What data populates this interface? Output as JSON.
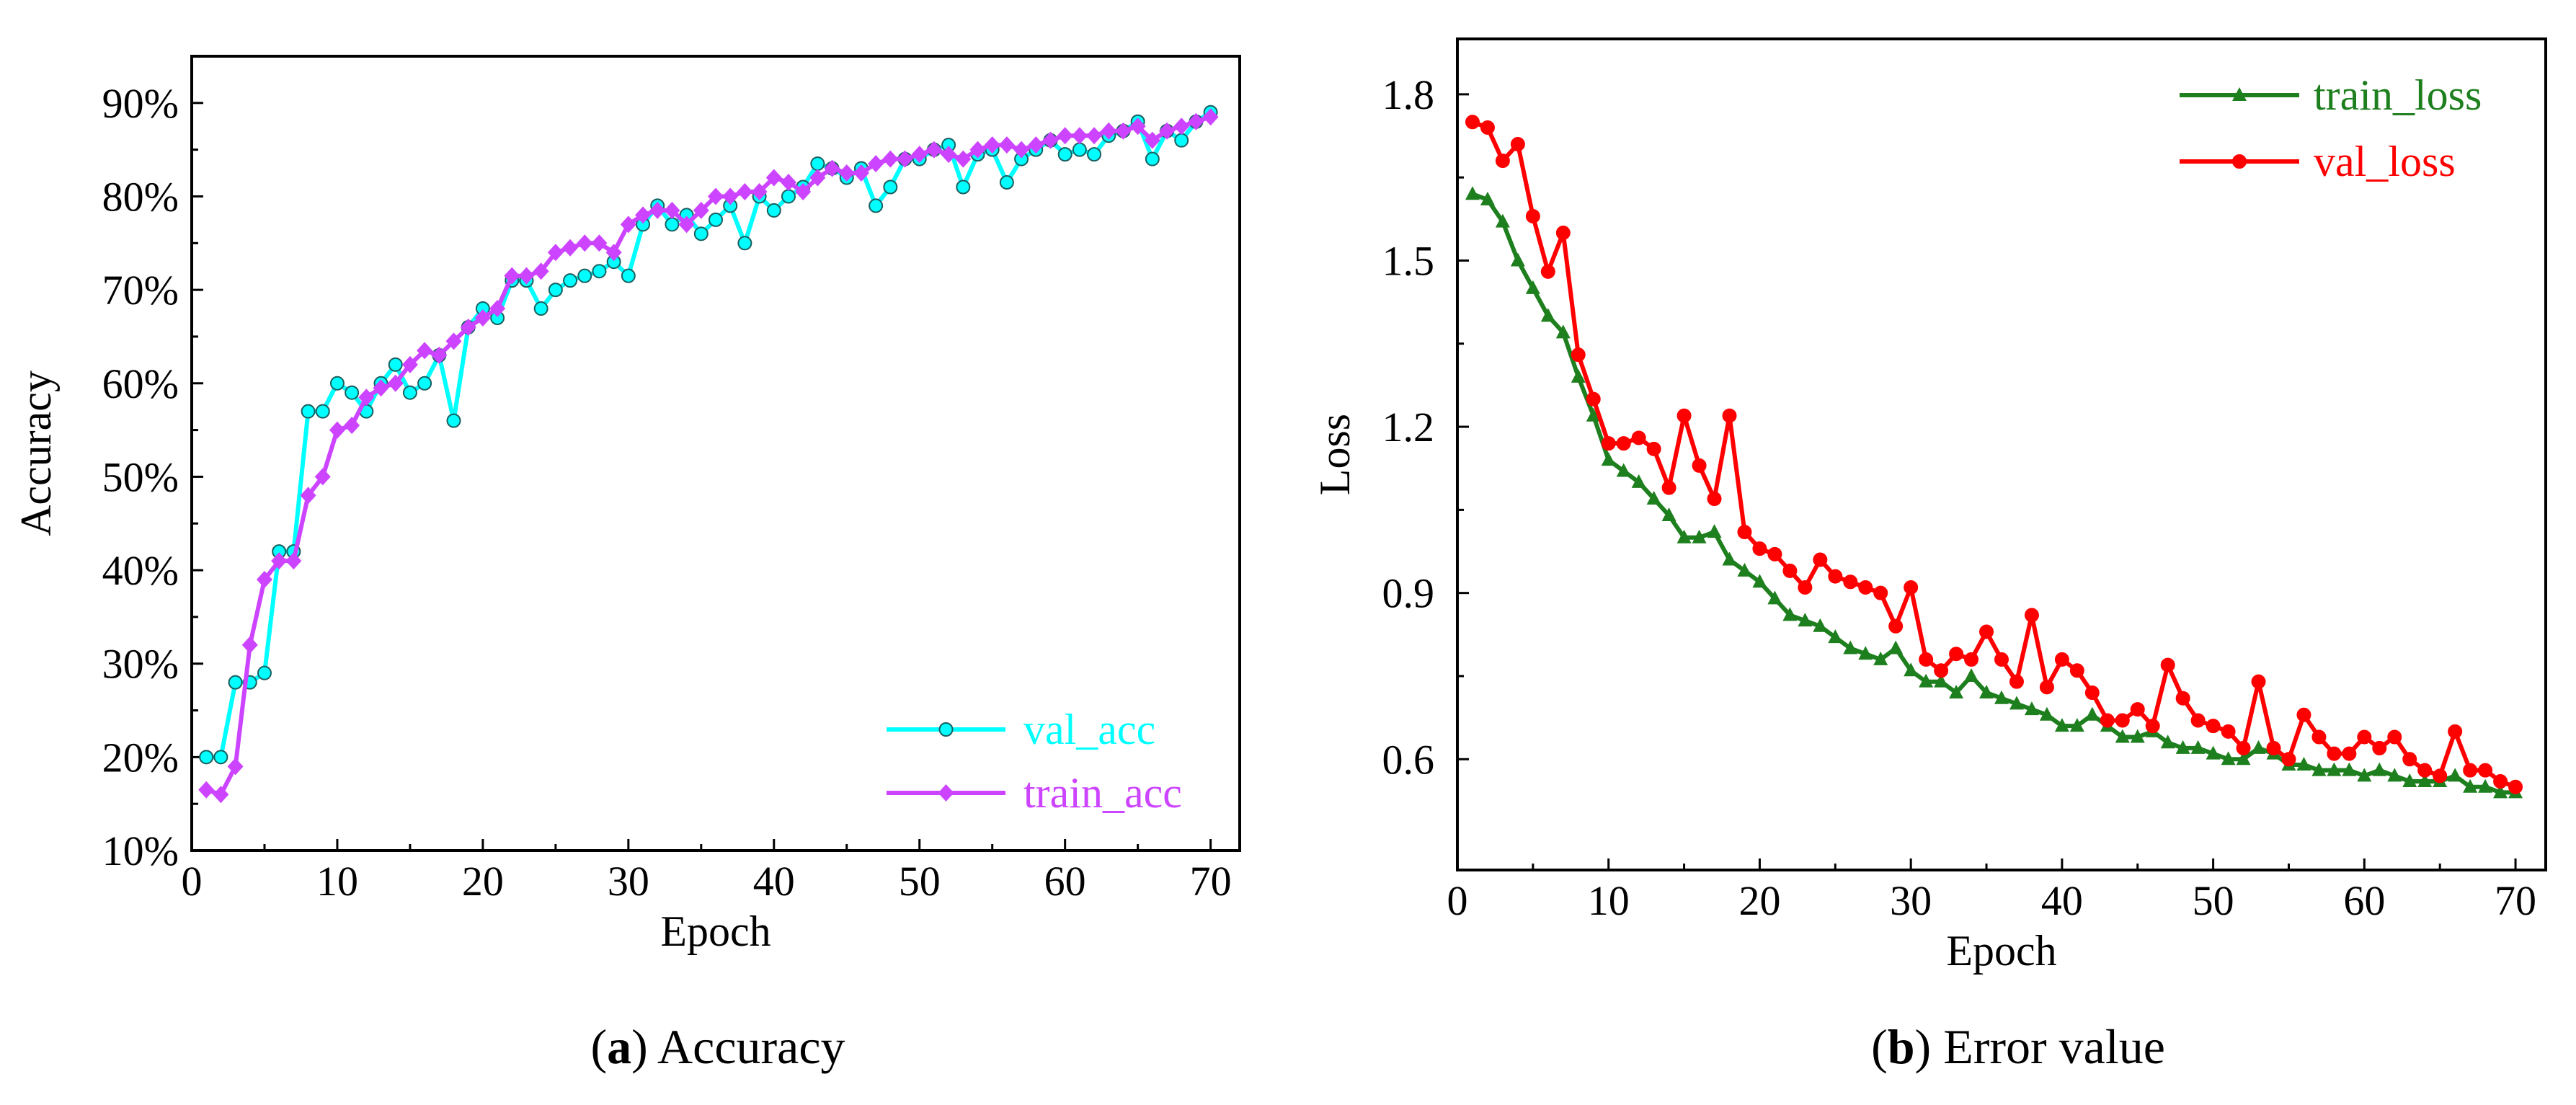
{
  "chart_data": [
    {
      "type": "line",
      "xlabel": "Epoch",
      "ylabel": "Accuracy",
      "xlim": [
        0,
        72
      ],
      "ylim": [
        10,
        95
      ],
      "xticks": [
        0,
        10,
        20,
        30,
        40,
        50,
        60,
        70
      ],
      "yticks": [
        10,
        20,
        30,
        40,
        50,
        60,
        70,
        80,
        90
      ],
      "ytick_labels": [
        "10%",
        "20%",
        "30%",
        "40%",
        "50%",
        "60%",
        "70%",
        "80%",
        "90%"
      ],
      "legend_position": "bottom-right",
      "caption_label": "a",
      "caption_text": "Accuracy",
      "colors": {
        "val_acc": "#00FFFF",
        "train_acc": "#CC44FF"
      },
      "x": [
        1,
        2,
        3,
        4,
        5,
        6,
        7,
        8,
        9,
        10,
        11,
        12,
        13,
        14,
        15,
        16,
        17,
        18,
        19,
        20,
        21,
        22,
        23,
        24,
        25,
        26,
        27,
        28,
        29,
        30,
        31,
        32,
        33,
        34,
        35,
        36,
        37,
        38,
        39,
        40,
        41,
        42,
        43,
        44,
        45,
        46,
        47,
        48,
        49,
        50,
        51,
        52,
        53,
        54,
        55,
        56,
        57,
        58,
        59,
        60,
        61,
        62,
        63,
        64,
        65,
        66,
        67,
        68,
        69,
        70
      ],
      "series": [
        {
          "name": "val_acc",
          "marker": "circle",
          "values": [
            20,
            20,
            28,
            28,
            29,
            42,
            42,
            57,
            57,
            60,
            59,
            57,
            60,
            62,
            59,
            60,
            63,
            56,
            66,
            68,
            67,
            71,
            71,
            68,
            70,
            71,
            71.5,
            72,
            73,
            71.5,
            77,
            79,
            77,
            78,
            76,
            77.5,
            79,
            75,
            80,
            78.5,
            80,
            81,
            83.5,
            83,
            82,
            83,
            79,
            81,
            84,
            84,
            85,
            85.5,
            81,
            84.5,
            85,
            81.5,
            84,
            85,
            86,
            84.5,
            85,
            84.5,
            86.5,
            87,
            88,
            84,
            87,
            86,
            88,
            89
          ]
        },
        {
          "name": "train_acc",
          "marker": "diamond",
          "values": [
            16.5,
            16,
            19,
            32,
            39,
            41,
            41,
            48,
            50,
            55,
            55.5,
            58.5,
            59.5,
            60,
            62,
            63.5,
            63,
            64.5,
            66,
            67,
            68,
            71.5,
            71.5,
            72,
            74,
            74.5,
            75,
            75,
            74,
            77,
            78,
            78.5,
            78.5,
            77,
            78.5,
            80,
            80,
            80.5,
            80.5,
            82,
            81.5,
            80.5,
            82,
            83,
            82.5,
            82.5,
            83.5,
            84,
            84,
            84.5,
            85,
            84.5,
            84,
            85,
            85.5,
            85.5,
            85,
            85.5,
            86,
            86.5,
            86.5,
            86.5,
            87,
            87,
            87.5,
            86,
            87,
            87.5,
            88,
            88.5
          ]
        }
      ]
    },
    {
      "type": "line",
      "xlabel": "Epoch",
      "ylabel": "Loss",
      "xlim": [
        0,
        72
      ],
      "ylim": [
        0.4,
        1.9
      ],
      "xticks": [
        0,
        10,
        20,
        30,
        40,
        50,
        60,
        70
      ],
      "yticks": [
        0.6,
        0.9,
        1.2,
        1.5,
        1.8
      ],
      "ytick_labels": [
        "0.6",
        "0.9",
        "1.2",
        "1.5",
        "1.8"
      ],
      "legend_position": "top-right",
      "caption_label": "b",
      "caption_text": "Error value",
      "colors": {
        "train_loss": "#1E7F1E",
        "val_loss": "#FF0000"
      },
      "x": [
        1,
        2,
        3,
        4,
        5,
        6,
        7,
        8,
        9,
        10,
        11,
        12,
        13,
        14,
        15,
        16,
        17,
        18,
        19,
        20,
        21,
        22,
        23,
        24,
        25,
        26,
        27,
        28,
        29,
        30,
        31,
        32,
        33,
        34,
        35,
        36,
        37,
        38,
        39,
        40,
        41,
        42,
        43,
        44,
        45,
        46,
        47,
        48,
        49,
        50,
        51,
        52,
        53,
        54,
        55,
        56,
        57,
        58,
        59,
        60,
        61,
        62,
        63,
        64,
        65,
        66,
        67,
        68,
        69,
        70
      ],
      "series": [
        {
          "name": "train_loss",
          "marker": "triangle",
          "values": [
            1.62,
            1.61,
            1.57,
            1.5,
            1.45,
            1.4,
            1.37,
            1.29,
            1.22,
            1.14,
            1.12,
            1.1,
            1.07,
            1.04,
            1.0,
            1.0,
            1.01,
            0.96,
            0.94,
            0.92,
            0.89,
            0.86,
            0.85,
            0.84,
            0.82,
            0.8,
            0.79,
            0.78,
            0.8,
            0.76,
            0.74,
            0.74,
            0.72,
            0.75,
            0.72,
            0.71,
            0.7,
            0.69,
            0.68,
            0.66,
            0.66,
            0.68,
            0.66,
            0.64,
            0.64,
            0.65,
            0.63,
            0.62,
            0.62,
            0.61,
            0.6,
            0.6,
            0.62,
            0.61,
            0.59,
            0.59,
            0.58,
            0.58,
            0.58,
            0.57,
            0.58,
            0.57,
            0.56,
            0.56,
            0.56,
            0.57,
            0.55,
            0.55,
            0.54,
            0.54
          ]
        },
        {
          "name": "val_loss",
          "marker": "circle",
          "values": [
            1.75,
            1.74,
            1.68,
            1.71,
            1.58,
            1.48,
            1.55,
            1.33,
            1.25,
            1.17,
            1.17,
            1.18,
            1.16,
            1.09,
            1.22,
            1.13,
            1.07,
            1.22,
            1.01,
            0.98,
            0.97,
            0.94,
            0.91,
            0.96,
            0.93,
            0.92,
            0.91,
            0.9,
            0.84,
            0.91,
            0.78,
            0.76,
            0.79,
            0.78,
            0.83,
            0.78,
            0.74,
            0.86,
            0.73,
            0.78,
            0.76,
            0.72,
            0.67,
            0.67,
            0.69,
            0.66,
            0.77,
            0.71,
            0.67,
            0.66,
            0.65,
            0.62,
            0.74,
            0.62,
            0.6,
            0.68,
            0.64,
            0.61,
            0.61,
            0.64,
            0.62,
            0.64,
            0.6,
            0.58,
            0.57,
            0.65,
            0.58,
            0.58,
            0.56,
            0.55
          ]
        }
      ]
    }
  ]
}
